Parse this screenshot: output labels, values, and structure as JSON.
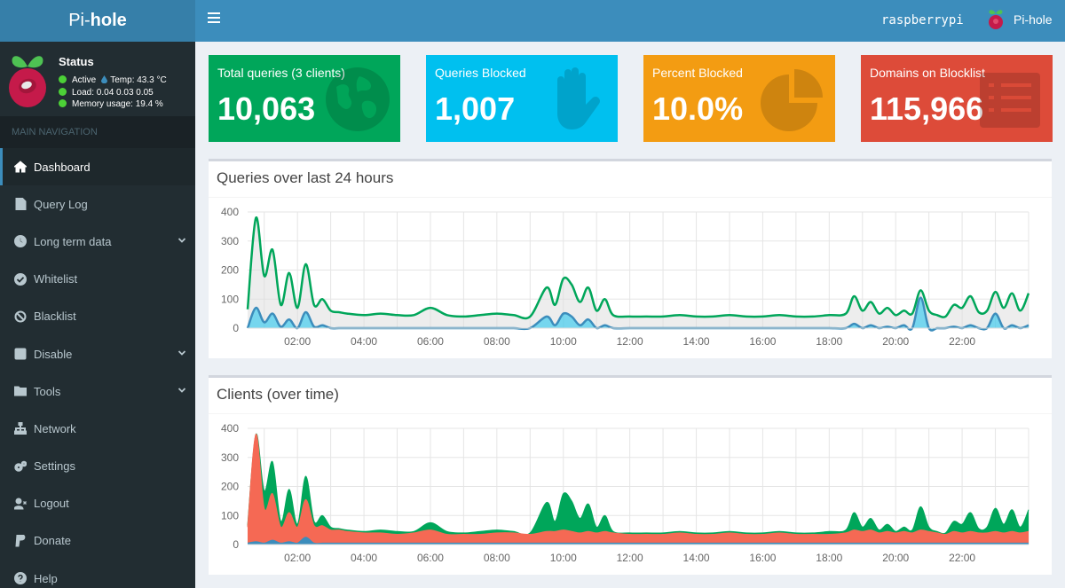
{
  "app": {
    "logo_light": "Pi-",
    "logo_bold": "hole",
    "hostname": "raspberrypi",
    "user_label": "Pi-hole"
  },
  "status": {
    "title": "Status",
    "active": "Active",
    "temp": "Temp: 43.3 °C",
    "load": "Load:  0.04  0.03  0.05",
    "memory": "Memory usage:  19.4 %",
    "dot_color": "#4cd137"
  },
  "nav": {
    "header": "MAIN NAVIGATION",
    "items": [
      {
        "label": "Dashboard",
        "icon": "home-icon",
        "active": true
      },
      {
        "label": "Query Log",
        "icon": "file-icon"
      },
      {
        "label": "Long term data",
        "icon": "history-icon",
        "expandable": true
      },
      {
        "label": "Whitelist",
        "icon": "check-circle-icon"
      },
      {
        "label": "Blacklist",
        "icon": "ban-icon"
      },
      {
        "label": "Disable",
        "icon": "stop-icon",
        "expandable": true
      },
      {
        "label": "Tools",
        "icon": "folder-icon",
        "expandable": true
      },
      {
        "label": "Network",
        "icon": "network-icon"
      },
      {
        "label": "Settings",
        "icon": "gears-icon"
      },
      {
        "label": "Logout",
        "icon": "user-times-icon"
      },
      {
        "label": "Donate",
        "icon": "paypal-icon"
      },
      {
        "label": "Help",
        "icon": "question-circle-icon"
      }
    ]
  },
  "stats": [
    {
      "label": "Total queries (3 clients)",
      "value": "10,063",
      "color": "#00a65a",
      "icon": "globe-icon"
    },
    {
      "label": "Queries Blocked",
      "value": "1,007",
      "color": "#00c0ef",
      "icon": "hand-icon"
    },
    {
      "label": "Percent Blocked",
      "value": "10.0%",
      "color": "#f39c12",
      "icon": "pie-chart-icon"
    },
    {
      "label": "Domains on Blocklist",
      "value": "115,966",
      "color": "#dd4b39",
      "icon": "list-alt-icon"
    }
  ],
  "charts": {
    "queries_title": "Queries over last 24 hours",
    "clients_title": "Clients (over time)"
  },
  "chart_data": [
    {
      "type": "area",
      "title": "Queries over last 24 hours",
      "x": [
        0.0,
        0.25,
        0.5,
        0.75,
        1.0,
        1.25,
        1.5,
        1.75,
        2.0,
        2.25,
        2.5,
        2.75,
        3.0,
        3.5,
        4.0,
        4.5,
        5.0,
        5.5,
        6.0,
        6.5,
        7.0,
        7.5,
        8.0,
        8.5,
        9.0,
        9.25,
        9.5,
        9.75,
        10.0,
        10.25,
        10.5,
        10.75,
        11.0,
        11.5,
        12.0,
        12.5,
        13.0,
        13.5,
        14.0,
        14.5,
        15.0,
        15.5,
        16.0,
        16.5,
        17.0,
        17.5,
        18.0,
        18.25,
        18.5,
        18.75,
        19.0,
        19.25,
        19.5,
        19.75,
        20.0,
        20.25,
        20.5,
        20.75,
        21.0,
        21.25,
        21.5,
        21.75,
        22.0,
        22.25,
        22.5,
        22.75,
        23.0,
        23.25,
        23.5
      ],
      "x_tick_labels": [
        "02:00",
        "04:00",
        "06:00",
        "08:00",
        "10:00",
        "12:00",
        "14:00",
        "16:00",
        "18:00",
        "20:00",
        "22:00"
      ],
      "x_ticks": [
        1.5,
        3.5,
        5.5,
        7.5,
        9.5,
        11.5,
        13.5,
        15.5,
        17.5,
        19.5,
        21.5
      ],
      "ylim": [
        0,
        400
      ],
      "y_ticks": [
        0,
        100,
        200,
        300,
        400
      ],
      "grid": true,
      "series": [
        {
          "color": "#00a65a",
          "fill": "rgba(220,220,220,0.5)",
          "values": [
            65,
            380,
            180,
            270,
            80,
            190,
            70,
            220,
            80,
            100,
            60,
            55,
            50,
            45,
            50,
            45,
            45,
            70,
            45,
            40,
            45,
            50,
            45,
            40,
            140,
            80,
            170,
            150,
            90,
            140,
            60,
            100,
            45,
            40,
            40,
            40,
            45,
            40,
            40,
            45,
            40,
            40,
            45,
            40,
            40,
            45,
            50,
            110,
            60,
            90,
            50,
            70,
            45,
            60,
            50,
            130,
            60,
            45,
            40,
            80,
            70,
            110,
            55,
            60,
            125,
            70,
            120,
            60,
            120
          ]
        },
        {
          "color": "#3c8dbc",
          "fill": "rgba(0,192,239,0.5)",
          "values": [
            0,
            70,
            20,
            50,
            5,
            30,
            0,
            55,
            5,
            10,
            0,
            0,
            0,
            0,
            0,
            0,
            0,
            0,
            0,
            0,
            0,
            0,
            0,
            0,
            40,
            10,
            50,
            40,
            10,
            30,
            0,
            10,
            0,
            0,
            0,
            0,
            0,
            0,
            0,
            0,
            0,
            0,
            0,
            0,
            0,
            0,
            0,
            15,
            0,
            10,
            0,
            5,
            0,
            10,
            0,
            105,
            0,
            0,
            0,
            5,
            0,
            10,
            0,
            0,
            50,
            0,
            10,
            0,
            10
          ]
        }
      ]
    },
    {
      "type": "area",
      "title": "Clients (over time)",
      "stacked": true,
      "x": [
        0.0,
        0.25,
        0.5,
        0.75,
        1.0,
        1.25,
        1.5,
        1.75,
        2.0,
        2.25,
        2.5,
        2.75,
        3.0,
        3.5,
        4.0,
        4.5,
        5.0,
        5.5,
        6.0,
        6.5,
        7.0,
        7.5,
        8.0,
        8.5,
        9.0,
        9.25,
        9.5,
        9.75,
        10.0,
        10.25,
        10.5,
        10.75,
        11.0,
        11.5,
        12.0,
        12.5,
        13.0,
        13.5,
        14.0,
        14.5,
        15.0,
        15.5,
        16.0,
        16.5,
        17.0,
        17.5,
        18.0,
        18.25,
        18.5,
        18.75,
        19.0,
        19.25,
        19.5,
        19.75,
        20.0,
        20.25,
        20.5,
        20.75,
        21.0,
        21.25,
        21.5,
        21.75,
        22.0,
        22.25,
        22.5,
        22.75,
        23.0,
        23.25,
        23.5
      ],
      "x_tick_labels": [
        "02:00",
        "04:00",
        "06:00",
        "08:00",
        "10:00",
        "12:00",
        "14:00",
        "16:00",
        "18:00",
        "20:00",
        "22:00"
      ],
      "x_ticks": [
        1.5,
        3.5,
        5.5,
        7.5,
        9.5,
        11.5,
        13.5,
        15.5,
        17.5,
        19.5,
        21.5
      ],
      "ylim": [
        0,
        400
      ],
      "y_ticks": [
        0,
        100,
        200,
        300,
        400
      ],
      "grid": true,
      "series": [
        {
          "color": "#3c8dbc",
          "values": [
            5,
            10,
            5,
            15,
            5,
            10,
            5,
            25,
            5,
            5,
            5,
            5,
            5,
            5,
            5,
            5,
            5,
            5,
            5,
            5,
            5,
            5,
            5,
            5,
            5,
            5,
            5,
            5,
            5,
            5,
            5,
            5,
            5,
            5,
            5,
            5,
            5,
            5,
            5,
            5,
            5,
            5,
            5,
            5,
            5,
            5,
            5,
            5,
            5,
            5,
            5,
            5,
            5,
            5,
            5,
            5,
            5,
            5,
            5,
            5,
            5,
            5,
            5,
            5,
            5,
            5,
            5,
            5,
            5
          ]
        },
        {
          "color": "#f56954",
          "values": [
            55,
            370,
            120,
            160,
            55,
            100,
            55,
            130,
            60,
            60,
            45,
            45,
            40,
            35,
            35,
            30,
            35,
            45,
            30,
            30,
            30,
            35,
            35,
            30,
            40,
            40,
            45,
            40,
            35,
            40,
            35,
            40,
            35,
            30,
            30,
            30,
            35,
            30,
            30,
            35,
            30,
            30,
            35,
            30,
            30,
            30,
            35,
            45,
            40,
            45,
            35,
            40,
            35,
            40,
            35,
            45,
            40,
            35,
            30,
            40,
            35,
            40,
            35,
            35,
            40,
            35,
            40,
            35,
            40
          ]
        },
        {
          "color": "#00a65a",
          "values": [
            5,
            0,
            60,
            110,
            20,
            80,
            10,
            80,
            15,
            35,
            10,
            5,
            5,
            5,
            10,
            10,
            5,
            25,
            10,
            5,
            10,
            10,
            5,
            5,
            100,
            35,
            125,
            105,
            50,
            95,
            20,
            55,
            5,
            5,
            5,
            5,
            5,
            5,
            5,
            5,
            5,
            5,
            5,
            5,
            5,
            10,
            10,
            60,
            15,
            40,
            10,
            25,
            5,
            15,
            10,
            80,
            15,
            5,
            5,
            35,
            30,
            65,
            15,
            20,
            80,
            30,
            75,
            20,
            75
          ]
        }
      ]
    }
  ]
}
